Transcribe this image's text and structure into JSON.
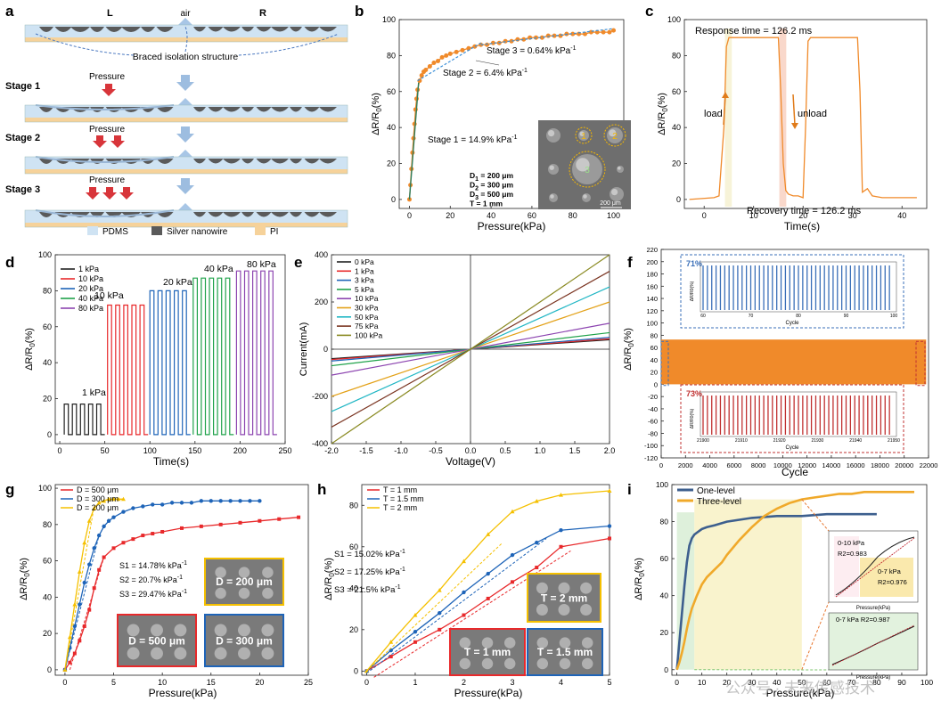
{
  "panels": {
    "a": {
      "letter": "a",
      "top_labels": {
        "left": "L",
        "mid": "air",
        "right": "R"
      },
      "braced_label": "Braced isolation structure",
      "pressure_label": "Pressure",
      "stages": [
        "Stage 1",
        "Stage 2",
        "Stage 3"
      ],
      "legend": [
        "PDMS",
        "Silver nanowire",
        "PI"
      ],
      "colors": {
        "pdms": "#cfe3f3",
        "silver": "#5a5a5a",
        "pi": "#f6d29a",
        "arrow_red": "#d8353a",
        "arrow_blue": "#9dbde0"
      }
    },
    "b": {
      "letter": "b",
      "ylabel": "ΔR/R0(%)",
      "xlabel": "Pressure(kPa)",
      "stage1": "Stage 1 = 14.9% kPa",
      "stage2": "Stage 2 = 6.4% kPa",
      "stage3": "Stage 3 = 0.64% kPa",
      "sup": "-1",
      "inset_params": [
        "D1 = 200 μm",
        "D2 = 300 μm",
        "D3 = 500 μm",
        "T = 1 mm"
      ],
      "inset_scale": "200 μm",
      "inset_numbers": [
        "1",
        "2",
        "3"
      ]
    },
    "c": {
      "letter": "c",
      "ylabel": "ΔR/R0(%)",
      "xlabel": "Time(s)",
      "response": "Response time = 126.2 ms",
      "recovery": "Recovery time = 126.2 ms",
      "load": "load",
      "unload": "unload"
    },
    "d": {
      "letter": "d",
      "ylabel": "ΔR/R0(%)",
      "xlabel": "Time(s)",
      "legend": [
        "1 kPa",
        "10 kPa",
        "20 kPa",
        "40 kPa",
        "80 kPa"
      ],
      "labels": [
        "1 kPa",
        "10 kPa",
        "20 kPa",
        "40 kPa",
        "80 kPa"
      ]
    },
    "e": {
      "letter": "e",
      "ylabel": "Current(mA)",
      "xlabel": "Voltage(V)",
      "legend": [
        "0 kPa",
        "1 kPa",
        "3 kPa",
        "5 kPa",
        "10 kPa",
        "30 kPa",
        "50 kPa",
        "75 kPa",
        "100 kPa"
      ]
    },
    "f": {
      "letter": "f",
      "ylabel": "ΔR/R0(%)",
      "xlabel": "Cycle",
      "inset1_pct": "71%",
      "inset2_pct": "73%",
      "inset_ylabel": "ΔR/R0(%)",
      "inset_xlabel": "Cycle"
    },
    "g": {
      "letter": "g",
      "ylabel": "ΔR/R0(%)",
      "xlabel": "Pressure(kPa)",
      "legend": [
        "D = 500 μm",
        "D = 300 μm",
        "D = 200 μm"
      ],
      "s1": "S1 = 14.78% kPa",
      "s2": "S2 = 20.7% kPa",
      "s3": "S3 = 29.47% kPa",
      "sup": "-1",
      "box1": "D = 200 μm",
      "box2": "D = 500 μm",
      "box3": "D = 300 μm"
    },
    "h": {
      "letter": "h",
      "ylabel": "ΔR/R0(%)",
      "xlabel": "Pressure(kPa)",
      "legend": [
        "T = 1 mm",
        "T = 1.5 mm",
        "T = 2 mm"
      ],
      "s1": "S1 = 15.02% kPa",
      "s2": "S2 = 17.25% kPa",
      "s3": "S3 = 21.5% kPa",
      "sup": "-1",
      "box1": "T = 2 mm",
      "box2": "T = 1 mm",
      "box3": "T = 1.5 mm"
    },
    "i": {
      "letter": "i",
      "ylabel": "ΔR/R0(%)",
      "xlabel": "Pressure(kPa)",
      "legend": [
        "One-level",
        "Three-level"
      ],
      "inset1_a": "0-10 kPa",
      "inset1_b": "R2=0.983",
      "inset1_c": "0-7 kPa",
      "inset1_d": "R2=0.976",
      "inset2_a": "0-7 kPa R2=0.987",
      "inset_xlabel": "Pressure(kPa)",
      "watermark": "公众号 · 未来传感技术"
    }
  },
  "chart_data": [
    {
      "panel": "b",
      "type": "line",
      "xlabel": "Pressure(kPa)",
      "ylabel": "ΔR/R0(%)",
      "xlim": [
        -5,
        105
      ],
      "ylim": [
        -5,
        100
      ],
      "xticks": [
        0,
        20,
        40,
        60,
        80,
        100
      ],
      "yticks": [
        0,
        20,
        40,
        60,
        80,
        100
      ],
      "series": [
        {
          "x": [
            0,
            0.5,
            1,
            1.5,
            2,
            2.5,
            3,
            3.5,
            4,
            5,
            6,
            7,
            8,
            10,
            12,
            14,
            16,
            18,
            20,
            23,
            26,
            29,
            32,
            35,
            38,
            41,
            44,
            47,
            50,
            53,
            56,
            59,
            62,
            65,
            68,
            71,
            74,
            77,
            80,
            83,
            86,
            89,
            92,
            95,
            98,
            100
          ],
          "y": [
            0,
            8,
            17,
            26,
            34,
            42,
            50,
            56,
            61,
            66,
            69,
            71,
            72,
            74,
            76,
            77,
            79,
            80,
            81,
            82,
            83,
            84,
            85,
            86,
            86,
            87,
            87,
            88,
            88,
            89,
            89,
            90,
            90,
            90,
            91,
            91,
            91,
            92,
            92,
            92,
            92,
            93,
            93,
            93,
            93,
            94
          ]
        }
      ]
    },
    {
      "panel": "c",
      "type": "line",
      "xlabel": "Time(s)",
      "ylabel": "ΔR/R0(%)",
      "xlim": [
        -4,
        45
      ],
      "ylim": [
        -5,
        100
      ],
      "xticks": [
        0,
        10,
        20,
        30,
        40
      ],
      "yticks": [
        0,
        20,
        40,
        60,
        80,
        100
      ],
      "series": [
        {
          "x": [
            -3,
            2,
            3,
            4,
            4.5,
            5,
            5.5,
            6,
            7,
            8,
            10,
            12,
            14,
            15,
            15.5,
            16,
            16.5,
            17,
            18,
            19,
            20,
            20.5,
            21,
            21.5,
            22,
            24,
            26,
            28,
            30,
            31,
            31.5,
            32,
            33,
            34,
            36,
            38,
            40,
            43
          ],
          "y": [
            0,
            1,
            2,
            40,
            85,
            90,
            90,
            90,
            90,
            90,
            90,
            90,
            90,
            90,
            60,
            20,
            5,
            3,
            2,
            2,
            1,
            40,
            88,
            90,
            90,
            90,
            90,
            90,
            90,
            90,
            60,
            4,
            6,
            2,
            1,
            1,
            1,
            1
          ]
        }
      ]
    },
    {
      "panel": "d",
      "type": "line",
      "xlabel": "Time(s)",
      "ylabel": "ΔR/R0(%)",
      "xlim": [
        -5,
        250
      ],
      "ylim": [
        -5,
        100
      ],
      "xticks": [
        0,
        50,
        100,
        150,
        200,
        250
      ],
      "yticks": [
        0,
        20,
        40,
        60,
        80,
        100
      ],
      "series": [
        {
          "name": "1 kPa",
          "start": 5,
          "amp": 17
        },
        {
          "name": "10 kPa",
          "start": 53,
          "amp": 72
        },
        {
          "name": "20 kPa",
          "start": 100,
          "amp": 80
        },
        {
          "name": "40 kPa",
          "start": 148,
          "amp": 87
        },
        {
          "name": "80 kPa",
          "start": 196,
          "amp": 91
        }
      ]
    },
    {
      "panel": "e",
      "type": "line",
      "xlabel": "Voltage(V)",
      "ylabel": "Current(mA)",
      "xlim": [
        -2,
        2
      ],
      "ylim": [
        -400,
        400
      ],
      "xticks": [
        -2.0,
        -1.5,
        -1.0,
        -0.5,
        0.0,
        0.5,
        1.0,
        1.5,
        2.0
      ],
      "yticks": [
        -400,
        -200,
        0,
        200,
        400
      ],
      "series": [
        {
          "name": "0 kPa",
          "slope": 20
        },
        {
          "name": "1 kPa",
          "slope": 22
        },
        {
          "name": "3 kPa",
          "slope": 25
        },
        {
          "name": "5 kPa",
          "slope": 35
        },
        {
          "name": "10 kPa",
          "slope": 55
        },
        {
          "name": "30 kPa",
          "slope": 100
        },
        {
          "name": "50 kPa",
          "slope": 132
        },
        {
          "name": "75 kPa",
          "slope": 165
        },
        {
          "name": "100 kPa",
          "slope": 200
        }
      ]
    },
    {
      "panel": "f",
      "type": "area",
      "xlabel": "Cycle",
      "ylabel": "ΔR/R0(%)",
      "xlim": [
        0,
        22000
      ],
      "ylim": [
        -120,
        220
      ],
      "xticks": [
        0,
        2000,
        4000,
        6000,
        8000,
        10000,
        12000,
        14000,
        16000,
        18000,
        20000,
        22000
      ],
      "yticks": [
        -120,
        -100,
        -80,
        -60,
        -40,
        -20,
        0,
        20,
        40,
        60,
        80,
        100,
        120,
        140,
        160,
        180,
        200,
        220
      ],
      "band": [
        0,
        73
      ]
    },
    {
      "panel": "g",
      "type": "line",
      "xlabel": "Pressure(kPa)",
      "ylabel": "ΔR/R0(%)",
      "xlim": [
        -1,
        25
      ],
      "ylim": [
        -3,
        102
      ],
      "xticks": [
        0,
        5,
        10,
        15,
        20,
        25
      ],
      "yticks": [
        0,
        20,
        40,
        60,
        80,
        100
      ],
      "series": [
        {
          "name": "D = 500 μm",
          "x": [
            0,
            0.5,
            1,
            1.5,
            2,
            2.5,
            3,
            3.5,
            4,
            5,
            6,
            7,
            8,
            9,
            10,
            12,
            14,
            16,
            18,
            20,
            22,
            24
          ],
          "y": [
            0,
            4,
            9,
            16,
            24,
            33,
            45,
            55,
            62,
            67,
            70,
            72,
            74,
            75,
            76,
            78,
            79,
            80,
            81,
            82,
            83,
            84
          ]
        },
        {
          "name": "D = 300 μm",
          "x": [
            0,
            0.5,
            1,
            1.5,
            2,
            2.5,
            3,
            3.5,
            4,
            4.5,
            5,
            6,
            7,
            8,
            9,
            10,
            11,
            12,
            13,
            14,
            15,
            16,
            17,
            18,
            19,
            20
          ],
          "y": [
            0,
            12,
            24,
            36,
            48,
            58,
            67,
            74,
            79,
            82,
            84,
            87,
            89,
            90,
            91,
            91,
            92,
            92,
            92,
            93,
            93,
            93,
            93,
            93,
            93,
            93
          ]
        },
        {
          "name": "D = 200 μm",
          "x": [
            0,
            0.5,
            1,
            1.5,
            2,
            2.5,
            3,
            3.5,
            4,
            4.5,
            5,
            5.5,
            6
          ],
          "y": [
            0,
            18,
            36,
            54,
            70,
            82,
            89,
            92,
            93,
            94,
            94,
            94,
            94
          ]
        }
      ]
    },
    {
      "panel": "h",
      "type": "line",
      "xlabel": "Pressure(kPa)",
      "ylabel": "ΔR/R0(%)",
      "xlim": [
        -0.1,
        5
      ],
      "ylim": [
        -2,
        90
      ],
      "xticks": [
        0,
        1,
        2,
        3,
        4,
        5
      ],
      "yticks": [
        0,
        20,
        40,
        60,
        80
      ],
      "series": [
        {
          "name": "T = 1 mm",
          "x": [
            0,
            0.5,
            1,
            1.5,
            2,
            2.5,
            3,
            3.5,
            4,
            5
          ],
          "y": [
            0,
            7,
            14,
            20,
            27,
            35,
            43,
            50,
            60,
            64
          ]
        },
        {
          "name": "T = 1.5 mm",
          "x": [
            0,
            0.5,
            1,
            1.5,
            2,
            2.5,
            3,
            3.5,
            4,
            5
          ],
          "y": [
            0,
            10,
            19,
            28,
            38,
            47,
            56,
            62,
            68,
            70
          ]
        },
        {
          "name": "T = 2 mm",
          "x": [
            0,
            0.5,
            1,
            1.5,
            2,
            2.5,
            3,
            3.5,
            4,
            5
          ],
          "y": [
            0,
            14,
            27,
            39,
            53,
            66,
            77,
            82,
            85,
            87
          ]
        }
      ]
    },
    {
      "panel": "i",
      "type": "line",
      "xlabel": "Pressure(kPa)",
      "ylabel": "ΔR/R0(%)",
      "xlim": [
        -2,
        100
      ],
      "ylim": [
        -3,
        100
      ],
      "xticks": [
        0,
        10,
        20,
        30,
        40,
        50,
        60,
        70,
        80,
        90,
        100
      ],
      "yticks": [
        0,
        20,
        40,
        60,
        80,
        100
      ],
      "series": [
        {
          "name": "One-level",
          "x": [
            0,
            1,
            2,
            3,
            4,
            5,
            6,
            7,
            8,
            10,
            12,
            15,
            20,
            30,
            40,
            50,
            60,
            70,
            80
          ],
          "y": [
            0,
            15,
            30,
            45,
            58,
            67,
            71,
            73,
            74,
            76,
            77,
            78,
            80,
            82,
            83,
            83,
            84,
            84,
            84
          ]
        },
        {
          "name": "Three-level",
          "x": [
            0,
            1,
            2,
            3,
            4,
            5,
            6,
            8,
            10,
            12,
            15,
            18,
            20,
            25,
            30,
            35,
            40,
            45,
            50,
            55,
            60,
            65,
            70,
            75,
            80,
            85,
            90,
            95
          ],
          "y": [
            0,
            4,
            9,
            15,
            22,
            28,
            33,
            40,
            46,
            50,
            54,
            58,
            62,
            70,
            77,
            83,
            87,
            90,
            92,
            93,
            94,
            95,
            95,
            96,
            96,
            96,
            96,
            96
          ]
        }
      ]
    }
  ]
}
